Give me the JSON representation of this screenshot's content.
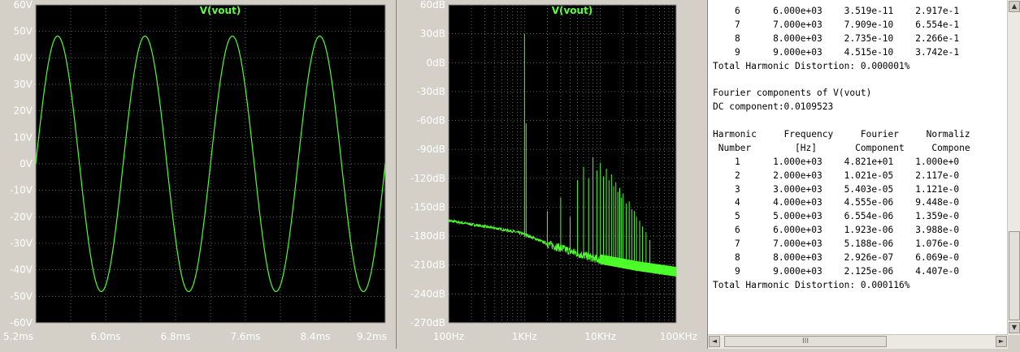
{
  "chart_data": [
    {
      "type": "line",
      "title": "V(vout)",
      "xlabel": "",
      "ylabel": "",
      "x_ticks": [
        "5.2ms",
        "6.0ms",
        "6.8ms",
        "7.6ms",
        "8.4ms",
        "9.2ms"
      ],
      "y_ticks": [
        "60V",
        "50V",
        "40V",
        "30V",
        "20V",
        "10V",
        "0V",
        "-10V",
        "-20V",
        "-30V",
        "-40V",
        "-50V",
        "-60V"
      ],
      "xlim": [
        5.2,
        9.2
      ],
      "ylim": [
        -60,
        60
      ],
      "series": [
        {
          "frequency_hz": 1000,
          "amplitude_v": 48.21,
          "peak_time_ms": 5.45,
          "color": "#4cff2a"
        }
      ],
      "grid": true,
      "background": "#000000"
    },
    {
      "type": "line",
      "title": "V(vout)",
      "xlabel": "",
      "ylabel": "",
      "x_scale": "log",
      "x_ticks": [
        "100Hz",
        "1KHz",
        "10KHz",
        "100KHz"
      ],
      "y_ticks": [
        "60dB",
        "30dB",
        "0dB",
        "-30dB",
        "-60dB",
        "-90dB",
        "-120dB",
        "-150dB",
        "-180dB",
        "-210dB",
        "-240dB",
        "-270dB"
      ],
      "xlim": [
        100,
        100000
      ],
      "ylim": [
        -270,
        60
      ],
      "series": [
        {
          "color": "#4cff2a",
          "noise_floor": [
            [
              100,
              -164
            ],
            [
              300,
              -170
            ],
            [
              700,
              -175
            ],
            [
              1000,
              -178
            ],
            [
              2000,
              -188
            ],
            [
              5000,
              -198
            ],
            [
              10000,
              -205
            ],
            [
              30000,
              -212
            ],
            [
              100000,
              -218
            ]
          ],
          "peaks": [
            [
              1000,
              30
            ],
            [
              1050,
              -63
            ],
            [
              2000,
              -154
            ],
            [
              3000,
              -140
            ],
            [
              4000,
              -160
            ],
            [
              5000,
              -122
            ],
            [
              6000,
              -108
            ],
            [
              7000,
              -120
            ],
            [
              8000,
              -98
            ],
            [
              9000,
              -112
            ],
            [
              10000,
              -104
            ],
            [
              11000,
              -118
            ],
            [
              12000,
              -110
            ],
            [
              13000,
              -122
            ],
            [
              14000,
              -116
            ],
            [
              15000,
              -128
            ],
            [
              16000,
              -124
            ],
            [
              17000,
              -134
            ],
            [
              18000,
              -130
            ],
            [
              19000,
              -140
            ],
            [
              20000,
              -136
            ],
            [
              22000,
              -146
            ],
            [
              24000,
              -144
            ],
            [
              26000,
              -152
            ],
            [
              28000,
              -154
            ],
            [
              30000,
              -160
            ],
            [
              33000,
              -164
            ],
            [
              36000,
              -170
            ],
            [
              40000,
              -176
            ],
            [
              45000,
              -184
            ]
          ]
        }
      ],
      "grid": true,
      "background": "#000000"
    }
  ],
  "log": {
    "lines": [
      "    6      6.000e+03    3.519e-11    2.917e-1",
      "    7      7.000e+03    7.909e-10    6.554e-1",
      "    8      8.000e+03    2.735e-10    2.266e-1",
      "    9      9.000e+03    4.515e-10    3.742e-1",
      "Total Harmonic Distortion: 0.000001%",
      "",
      "Fourier components of V(vout)",
      "DC component:0.0109523",
      "",
      "Harmonic     Frequency     Fourier     Normaliz",
      " Number        [Hz]       Component     Compone",
      "    1      1.000e+03    4.821e+01    1.000e+0",
      "    2      2.000e+03    1.021e-05    2.117e-0",
      "    3      3.000e+03    5.403e-05    1.121e-0",
      "    4      4.000e+03    4.555e-06    9.448e-0",
      "    5      5.000e+03    6.554e-06    1.359e-0",
      "    6      6.000e+03    1.923e-06    3.988e-0",
      "    7      7.000e+03    5.188e-06    1.076e-0",
      "    8      8.000e+03    2.926e-07    6.069e-0",
      "    9      9.000e+03    2.125e-06    4.407e-0",
      "Total Harmonic Distortion: 0.000116%"
    ]
  },
  "scrollbar": {
    "up": "▲",
    "down": "▼",
    "left": "◄",
    "right": "►",
    "grip": "III"
  }
}
